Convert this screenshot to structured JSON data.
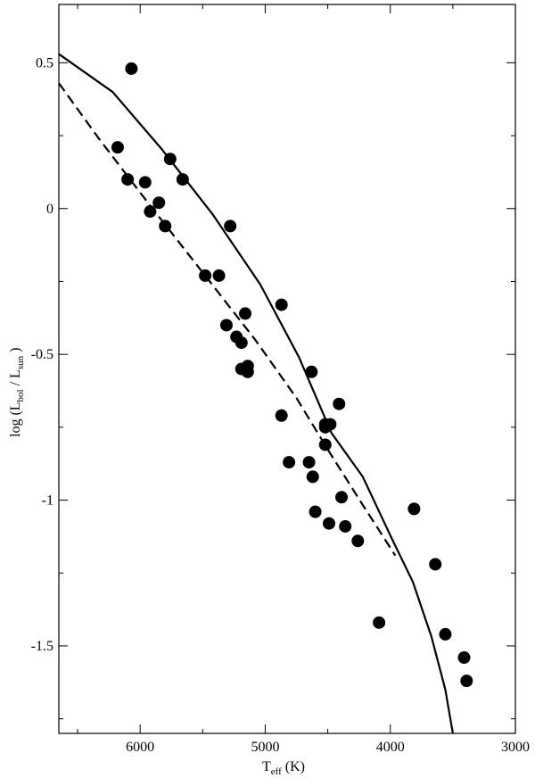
{
  "chart_data": {
    "type": "scatter",
    "xaxis": {
      "reversed": true,
      "range": [
        6650,
        3000
      ],
      "major_ticks": [
        6000,
        5000,
        4000,
        3000
      ],
      "minor_step": 500,
      "tick_labels": [
        "6000",
        "5000",
        "4000",
        "3000"
      ],
      "label_main": "T",
      "label_sub": "eff",
      "label_unit": " (K)"
    },
    "yaxis": {
      "range": [
        -1.8,
        0.7
      ],
      "major_ticks": [
        0.5,
        0,
        -0.5,
        -1,
        -1.5
      ],
      "minor_step": 0.25,
      "tick_labels": [
        "0.5",
        "0",
        "-0.5",
        "-1",
        "-1.5"
      ],
      "label_prefix": "log (L",
      "label_sub1": "bol",
      "label_mid": "  /  L",
      "label_sub2": "sun",
      "label_suffix": "   )"
    },
    "grid": false,
    "points": [
      {
        "x": 6070,
        "y": 0.48
      },
      {
        "x": 6180,
        "y": 0.21
      },
      {
        "x": 6100,
        "y": 0.1
      },
      {
        "x": 5960,
        "y": 0.09
      },
      {
        "x": 5920,
        "y": -0.01
      },
      {
        "x": 5850,
        "y": 0.02
      },
      {
        "x": 5800,
        "y": -0.06
      },
      {
        "x": 5760,
        "y": 0.17
      },
      {
        "x": 5660,
        "y": 0.1
      },
      {
        "x": 5280,
        "y": -0.06
      },
      {
        "x": 5480,
        "y": -0.23
      },
      {
        "x": 5370,
        "y": -0.23
      },
      {
        "x": 5310,
        "y": -0.4
      },
      {
        "x": 5230,
        "y": -0.44
      },
      {
        "x": 5190,
        "y": -0.46
      },
      {
        "x": 5160,
        "y": -0.36
      },
      {
        "x": 5190,
        "y": -0.55
      },
      {
        "x": 5140,
        "y": -0.54
      },
      {
        "x": 5140,
        "y": -0.56
      },
      {
        "x": 4870,
        "y": -0.33
      },
      {
        "x": 4630,
        "y": -0.56
      },
      {
        "x": 4870,
        "y": -0.71
      },
      {
        "x": 4810,
        "y": -0.87
      },
      {
        "x": 4650,
        "y": -0.87
      },
      {
        "x": 4620,
        "y": -0.92
      },
      {
        "x": 4410,
        "y": -0.67
      },
      {
        "x": 4520,
        "y": -0.74
      },
      {
        "x": 4480,
        "y": -0.74
      },
      {
        "x": 4520,
        "y": -0.75
      },
      {
        "x": 4520,
        "y": -0.81
      },
      {
        "x": 4600,
        "y": -1.04
      },
      {
        "x": 4390,
        "y": -0.99
      },
      {
        "x": 4490,
        "y": -1.08
      },
      {
        "x": 4360,
        "y": -1.09
      },
      {
        "x": 4260,
        "y": -1.14
      },
      {
        "x": 4090,
        "y": -1.42
      },
      {
        "x": 3810,
        "y": -1.03
      },
      {
        "x": 3640,
        "y": -1.22
      },
      {
        "x": 3560,
        "y": -1.46
      },
      {
        "x": 3410,
        "y": -1.54
      },
      {
        "x": 3390,
        "y": -1.62
      }
    ],
    "series": [
      {
        "style": "solid",
        "x": [
          6650,
          6220,
          5820,
          5420,
          5040,
          4730,
          4470,
          4220,
          3990,
          3820,
          3670,
          3560,
          3500
        ],
        "y": [
          0.53,
          0.4,
          0.2,
          -0.02,
          -0.26,
          -0.51,
          -0.77,
          -0.92,
          -1.13,
          -1.28,
          -1.47,
          -1.65,
          -1.8
        ]
      },
      {
        "style": "dashed",
        "x": [
          6650,
          6330,
          5920,
          5480,
          5080,
          4750,
          4480,
          4230,
          3960
        ],
        "y": [
          0.43,
          0.24,
          0.01,
          -0.23,
          -0.45,
          -0.65,
          -0.84,
          -1.01,
          -1.19
        ]
      }
    ]
  }
}
